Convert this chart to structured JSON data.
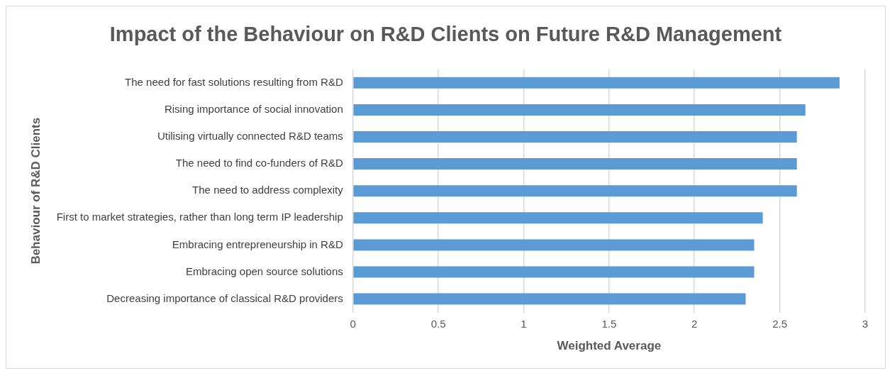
{
  "chart_data": {
    "type": "bar",
    "orientation": "horizontal",
    "title": "Impact of the Behaviour on R&D Clients on Future R&D Management",
    "xlabel": "Weighted Average",
    "ylabel": "Behaviour of R&D Clients",
    "categories": [
      "The need for fast solutions resulting from R&D",
      "Rising importance of social innovation",
      "Utilising virtually connected R&D teams",
      "The need to find co-funders of R&D",
      "The need to address complexity",
      "First to market strategies, rather than long term IP leadership",
      "Embracing entrepreneurship in R&D",
      "Embracing open source solutions",
      "Decreasing importance of classical R&D providers"
    ],
    "values": [
      2.85,
      2.65,
      2.6,
      2.6,
      2.6,
      2.4,
      2.35,
      2.35,
      2.3
    ],
    "color": "#5b9bd5",
    "xlim": [
      0,
      3
    ],
    "xticks": [
      0,
      0.5,
      1,
      1.5,
      2,
      2.5,
      3
    ],
    "grid": "x"
  }
}
